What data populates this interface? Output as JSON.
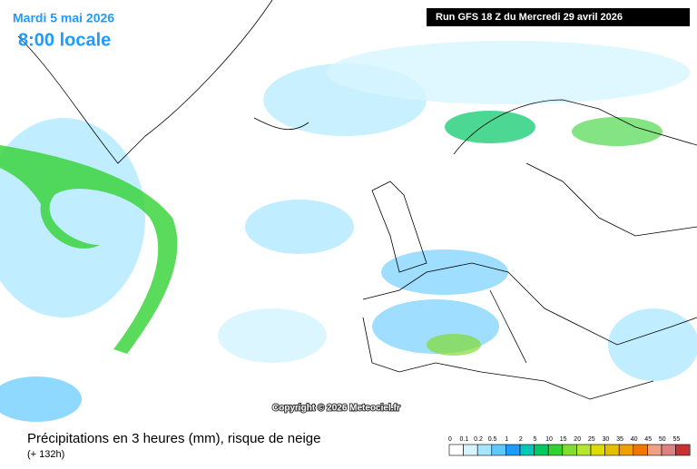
{
  "header": {
    "date": "Mardi 5 mai 2026",
    "time": "8:00 locale",
    "run": "Run GFS 18 Z du Mercredi 29 avril 2026"
  },
  "copyright": "Copyright © 2026 Meteociel.fr",
  "footer": {
    "title": "Précipitations en 3 heures (mm), risque de neige",
    "lead": "(+ 132h)"
  },
  "legend": {
    "items": [
      {
        "label": 0,
        "color": "#ffffff"
      },
      {
        "label": 0.1,
        "color": "#d7f5ff"
      },
      {
        "label": 0.2,
        "color": "#a5e6ff"
      },
      {
        "label": 0.5,
        "color": "#5fc8ff"
      },
      {
        "label": 1,
        "color": "#1e9bff"
      },
      {
        "label": 2,
        "color": "#00c8b4"
      },
      {
        "label": 5,
        "color": "#00c864"
      },
      {
        "label": 10,
        "color": "#32d232"
      },
      {
        "label": 15,
        "color": "#82dc32"
      },
      {
        "label": 20,
        "color": "#b4e632"
      },
      {
        "label": 25,
        "color": "#dcdc00"
      },
      {
        "label": 30,
        "color": "#e6be00"
      },
      {
        "label": 35,
        "color": "#f0a000"
      },
      {
        "label": 40,
        "color": "#f07800"
      },
      {
        "label": 45,
        "color": "#f0a082"
      },
      {
        "label": 50,
        "color": "#dc8282"
      },
      {
        "label": 55,
        "color": "#c83232"
      }
    ]
  }
}
